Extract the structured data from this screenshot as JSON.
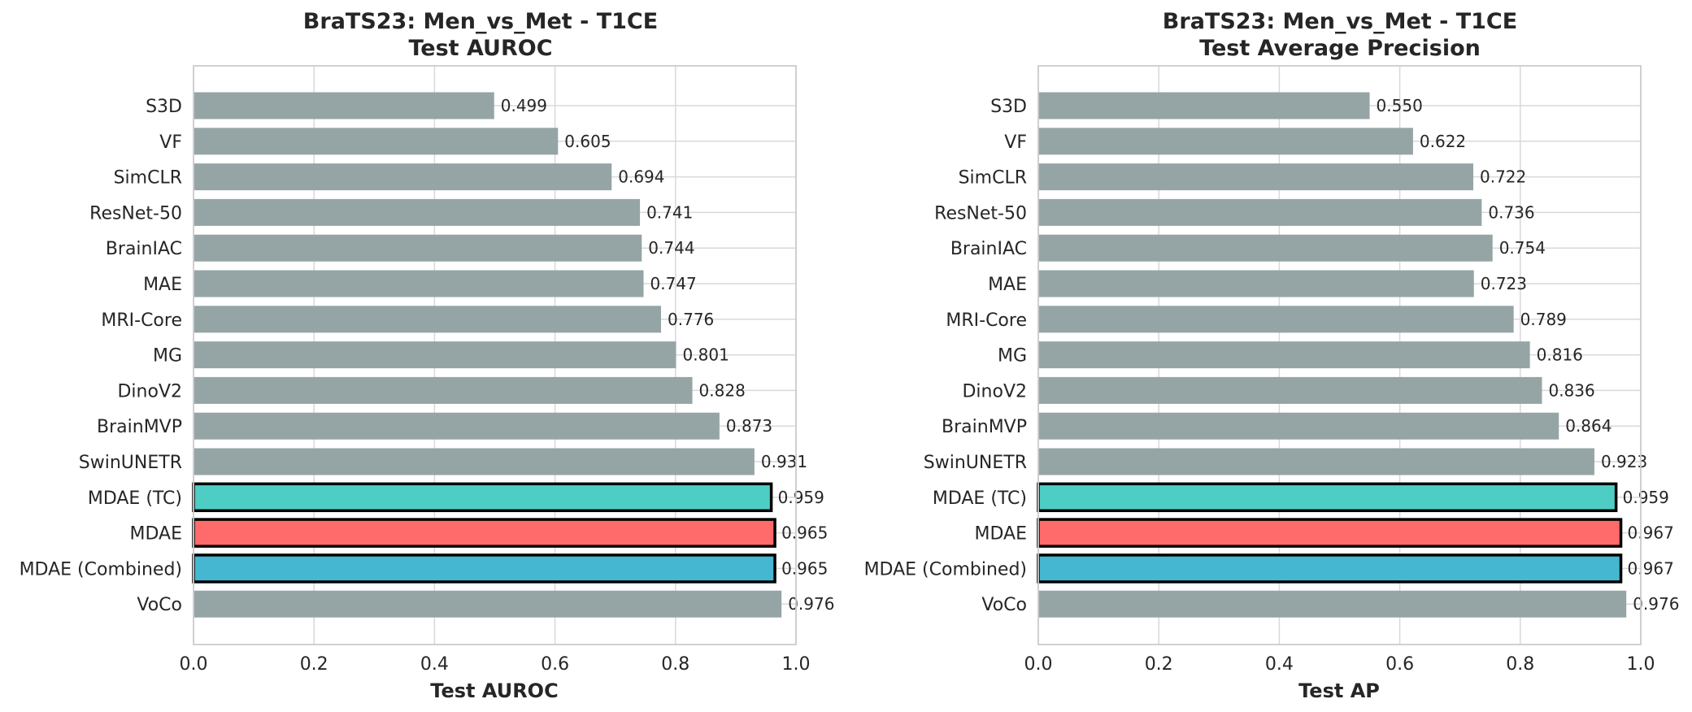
{
  "chart_data": [
    {
      "type": "bar",
      "orientation": "horizontal",
      "title": "BraTS23: Men_vs_Met - T1CE",
      "subtitle": "Test AUROC",
      "xlabel": "Test AUROC",
      "ylabel": "",
      "xlim": [
        0.0,
        1.0
      ],
      "xticks": [
        "0.0",
        "0.2",
        "0.4",
        "0.6",
        "0.8",
        "1.0"
      ],
      "grid": true,
      "categories": [
        "S3D",
        "VF",
        "SimCLR",
        "ResNet-50",
        "BrainIAC",
        "MAE",
        "MRI-Core",
        "MG",
        "DinoV2",
        "BrainMVP",
        "SwinUNETR",
        "MDAE (TC)",
        "MDAE",
        "MDAE (Combined)",
        "VoCo"
      ],
      "values": [
        0.499,
        0.605,
        0.694,
        0.741,
        0.744,
        0.747,
        0.776,
        0.801,
        0.828,
        0.873,
        0.931,
        0.959,
        0.965,
        0.965,
        0.976
      ],
      "value_labels": [
        "0.499",
        "0.605",
        "0.694",
        "0.741",
        "0.744",
        "0.747",
        "0.776",
        "0.801",
        "0.828",
        "0.873",
        "0.931",
        "0.959",
        "0.965",
        "0.965",
        "0.976"
      ],
      "highlighted": [
        "MDAE (TC)",
        "MDAE",
        "MDAE (Combined)"
      ]
    },
    {
      "type": "bar",
      "orientation": "horizontal",
      "title": "BraTS23: Men_vs_Met - T1CE",
      "subtitle": "Test Average Precision",
      "xlabel": "Test AP",
      "ylabel": "",
      "xlim": [
        0.0,
        1.0
      ],
      "xticks": [
        "0.0",
        "0.2",
        "0.4",
        "0.6",
        "0.8",
        "1.0"
      ],
      "grid": true,
      "categories": [
        "S3D",
        "VF",
        "SimCLR",
        "ResNet-50",
        "BrainIAC",
        "MAE",
        "MRI-Core",
        "MG",
        "DinoV2",
        "BrainMVP",
        "SwinUNETR",
        "MDAE (TC)",
        "MDAE",
        "MDAE (Combined)",
        "VoCo"
      ],
      "values": [
        0.55,
        0.622,
        0.722,
        0.736,
        0.754,
        0.723,
        0.789,
        0.816,
        0.836,
        0.864,
        0.923,
        0.959,
        0.967,
        0.967,
        0.976
      ],
      "value_labels": [
        "0.550",
        "0.622",
        "0.722",
        "0.736",
        "0.754",
        "0.723",
        "0.789",
        "0.816",
        "0.836",
        "0.864",
        "0.923",
        "0.959",
        "0.967",
        "0.967",
        "0.976"
      ],
      "highlighted": [
        "MDAE (TC)",
        "MDAE",
        "MDAE (Combined)"
      ]
    }
  ],
  "colors": {
    "default_bar": "#95a5a6",
    "highlight_bars": {
      "MDAE (TC)": "#4ecdc4",
      "MDAE": "#ff6b6b",
      "MDAE (Combined)": "#45b7d1"
    },
    "highlight_edge": "#000000"
  }
}
